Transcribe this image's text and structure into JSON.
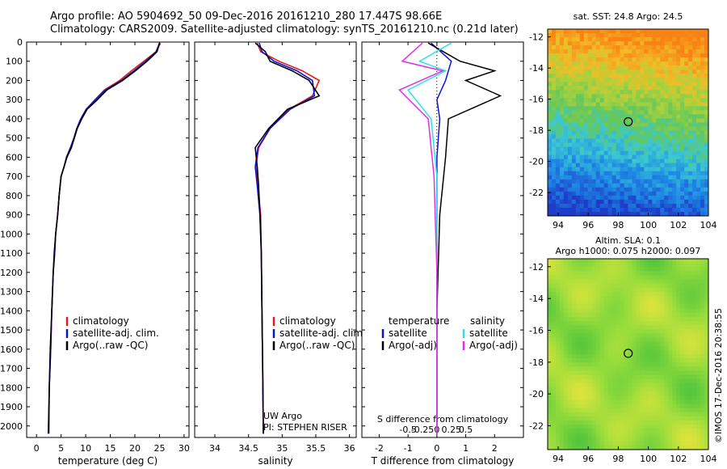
{
  "header": {
    "line1": "Argo profile: AO 5904692_50 09-Dec-2016 20161210_280 17.447S 98.66E",
    "line2": "Climatology: CARS2009. Satellite-adjusted climatology: synTS_20161210.nc (0.21d later)"
  },
  "colors": {
    "climatology": "#e41a1c",
    "satellite": "#1010d0",
    "argo": "#000000",
    "sal_satellite": "#30e0e8",
    "sal_argo": "#e030e0"
  },
  "chart_data": [
    {
      "type": "line",
      "id": "temperature",
      "xlabel": "temperature (deg C)",
      "xlim": [
        -2,
        31
      ],
      "xticks": [
        0,
        5,
        10,
        15,
        20,
        25,
        30
      ],
      "ylim": [
        0,
        2060
      ],
      "yticks": [
        0,
        100,
        200,
        300,
        400,
        500,
        600,
        700,
        800,
        900,
        1000,
        1100,
        1200,
        1300,
        1400,
        1500,
        1600,
        1700,
        1800,
        1900,
        2000
      ],
      "legend": [
        "climatology",
        "satellite-adj. clim.",
        "Argo(..raw -QC)"
      ],
      "series": [
        {
          "name": "climatology",
          "x": [
            25.2,
            24.3,
            21.8,
            19.3,
            16.9,
            13.8,
            11.9,
            10.1,
            9.0,
            8.2,
            7.6,
            6.9,
            6.1,
            5.6,
            5.0,
            4.6,
            4.3,
            3.9,
            3.7,
            3.4,
            3.1,
            2.9,
            2.6,
            2.5
          ],
          "y": [
            5,
            50,
            100,
            150,
            200,
            250,
            300,
            350,
            400,
            450,
            500,
            550,
            600,
            650,
            700,
            800,
            900,
            1000,
            1100,
            1200,
            1400,
            1600,
            1800,
            2040
          ]
        },
        {
          "name": "satellite-adj. clim.",
          "x": [
            25.0,
            24.3,
            22.2,
            19.8,
            17.3,
            14.0,
            12.0,
            10.1,
            9.0,
            8.2,
            7.6,
            6.9,
            6.1,
            5.6,
            5.0,
            4.6,
            4.3,
            3.9,
            3.7,
            3.4,
            3.1,
            2.9,
            2.6,
            2.5
          ],
          "y": [
            5,
            50,
            100,
            150,
            200,
            250,
            300,
            350,
            400,
            450,
            500,
            550,
            600,
            650,
            700,
            800,
            900,
            1000,
            1100,
            1200,
            1400,
            1600,
            1800,
            2040
          ]
        },
        {
          "name": "Argo(..raw -QC)",
          "x": [
            25.0,
            24.5,
            22.5,
            20.1,
            17.5,
            14.3,
            12.4,
            10.3,
            9.2,
            8.3,
            7.7,
            7.1,
            6.2,
            5.6,
            5.0,
            4.6,
            4.3,
            3.9,
            3.6,
            3.4,
            3.1,
            2.8,
            2.6,
            2.4
          ],
          "y": [
            5,
            50,
            100,
            150,
            200,
            250,
            300,
            350,
            400,
            450,
            500,
            550,
            600,
            650,
            700,
            800,
            900,
            1000,
            1100,
            1200,
            1400,
            1600,
            1800,
            2040
          ]
        }
      ]
    },
    {
      "type": "line",
      "id": "salinity",
      "xlabel": "salinity",
      "xlim": [
        33.7,
        36.1
      ],
      "xticks": [
        34,
        34.5,
        35,
        35.5,
        36
      ],
      "xtick_labels": [
        "34",
        "34.5",
        "35",
        "35.5",
        "36"
      ],
      "ylim": [
        0,
        2060
      ],
      "legend": [
        "climatology",
        "satellite-adj. clim.",
        "Argo(..raw -QC)"
      ],
      "annotation": [
        "UW Argo",
        "PI: STEPHEN RISER"
      ],
      "series": [
        {
          "name": "climatology",
          "x": [
            34.63,
            34.68,
            34.95,
            35.3,
            35.55,
            35.45,
            35.1,
            34.82,
            34.65,
            34.61,
            34.64,
            34.68,
            34.69,
            34.7,
            34.71,
            34.72
          ],
          "y": [
            5,
            50,
            100,
            150,
            200,
            280,
            350,
            450,
            550,
            650,
            750,
            900,
            1100,
            1400,
            1700,
            2040
          ]
        },
        {
          "name": "satellite-adj. clim.",
          "x": [
            34.66,
            34.7,
            34.88,
            35.22,
            35.45,
            35.48,
            35.12,
            34.82,
            34.64,
            34.6,
            34.63,
            34.67,
            34.69,
            34.7,
            34.71,
            34.72
          ],
          "y": [
            5,
            50,
            100,
            150,
            200,
            280,
            350,
            450,
            550,
            650,
            750,
            900,
            1100,
            1400,
            1700,
            2040
          ]
        },
        {
          "name": "Argo(..raw -QC)",
          "x": [
            34.6,
            34.75,
            34.82,
            35.15,
            35.4,
            35.55,
            35.08,
            34.8,
            34.6,
            34.63,
            34.65,
            34.67,
            34.69,
            34.7,
            34.71,
            34.72
          ],
          "y": [
            5,
            50,
            100,
            150,
            200,
            280,
            350,
            450,
            550,
            650,
            750,
            900,
            1100,
            1400,
            1700,
            2040
          ]
        }
      ]
    },
    {
      "type": "line",
      "id": "difference",
      "xlabel": "T difference from climatology",
      "toplabel": "S difference from climatology",
      "xlim": [
        -2.6,
        3.0
      ],
      "xticks": [
        -2,
        -1,
        0,
        1,
        2
      ],
      "xtick_labels": [
        "-2",
        "-1",
        "0",
        "1",
        "2"
      ],
      "sticks": [
        -1,
        -0.5,
        0,
        0.5,
        1
      ],
      "stick_labels": [
        "-0.5",
        "-0.25",
        "0",
        "0.25",
        "0.5"
      ],
      "ylim": [
        0,
        2060
      ],
      "legend_t": [
        "temperature",
        "satellite",
        "Argo(-adj)"
      ],
      "legend_s": [
        "salinity",
        "satellite",
        "Argo(-adj)"
      ],
      "series": [
        {
          "name": "T satellite",
          "x": [
            -0.2,
            0.5,
            0.4,
            0.3,
            0.0,
            0.1,
            0.0,
            0.0,
            0.0,
            0.0
          ],
          "y": [
            5,
            100,
            150,
            200,
            300,
            400,
            600,
            900,
            1400,
            2040
          ]
        },
        {
          "name": "T Argo(-adj)",
          "x": [
            -0.3,
            0.8,
            2.0,
            1.0,
            2.2,
            0.4,
            0.3,
            0.1,
            0.0,
            0.0
          ],
          "y": [
            5,
            100,
            150,
            200,
            280,
            400,
            600,
            900,
            1400,
            2040
          ]
        },
        {
          "name": "S satellite",
          "x": [
            0.5,
            -0.6,
            0.3,
            -1.0,
            -0.2,
            0.0,
            0.0,
            0.0
          ],
          "y": [
            5,
            100,
            150,
            250,
            400,
            700,
            1200,
            2040
          ]
        },
        {
          "name": "S Argo(-adj)",
          "x": [
            -0.5,
            -1.2,
            0.2,
            -1.3,
            -0.3,
            -0.1,
            0.0,
            0.0
          ],
          "y": [
            5,
            100,
            150,
            250,
            400,
            700,
            1200,
            2040
          ]
        }
      ]
    },
    {
      "type": "heatmap",
      "id": "sst_map",
      "title": "sat. SST: 24.8  Argo: 24.5",
      "xlim": [
        93.3,
        104
      ],
      "ylim": [
        -23.5,
        -11.5
      ],
      "xticks": [
        94,
        96,
        98,
        100,
        102,
        104
      ],
      "yticks": [
        -12,
        -14,
        -16,
        -18,
        -20,
        -22
      ],
      "marker": [
        98.66,
        -17.447
      ]
    },
    {
      "type": "heatmap",
      "id": "sla_map",
      "title1": "Altim. SLA: 0.1",
      "title2": "Argo h1000: 0.075  h2000: 0.097",
      "xlim": [
        93.3,
        104
      ],
      "ylim": [
        -23.5,
        -11.5
      ],
      "xticks": [
        94,
        96,
        98,
        100,
        102,
        104
      ],
      "yticks": [
        -12,
        -14,
        -16,
        -18,
        -20,
        -22
      ],
      "marker": [
        98.66,
        -17.447
      ]
    }
  ],
  "credit": "©IMOS 17-Dec-2016 20:38:55"
}
